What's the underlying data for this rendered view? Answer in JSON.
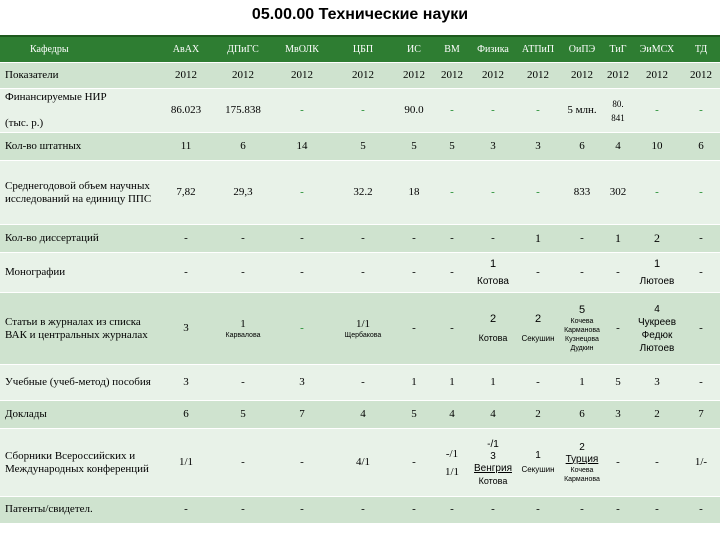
{
  "title": "05.00.00 Технические науки",
  "columns": [
    "АвАХ",
    "ДПиГС",
    "МвОЛК",
    "ЦБП",
    "ИС",
    "ВМ",
    "Физика",
    "АТПиП",
    "ОиПЭ",
    "ТиГ",
    "ЭиМСХ",
    "ТД"
  ],
  "header_label": "Кафедры",
  "rows": {
    "year": {
      "label": "Показатели",
      "values": [
        "2012",
        "2012",
        "2012",
        "2012",
        "2012",
        "2012",
        "2012",
        "2012",
        "2012",
        "2012",
        "2012",
        "2012"
      ]
    },
    "nir": {
      "label_line1": "Финансируемые НИР",
      "label_line2": "(тыс. р.)",
      "values": [
        "86.023",
        "175.838",
        "-",
        "-",
        "90.0",
        "-",
        "-",
        "-",
        "5 млн.",
        "80.",
        "-",
        "-"
      ],
      "tig_part2": "841"
    },
    "staff": {
      "label": "Кол-во штатных",
      "values": [
        "11",
        "6",
        "14",
        "5",
        "5",
        "5",
        "3",
        "3",
        "6",
        "4",
        "10",
        "6"
      ]
    },
    "avg": {
      "label": "Среднегодовой объем научных исследований на единицу ППС",
      "values": [
        "7,82",
        "29,3",
        "-",
        "32.2",
        "18",
        "-",
        "-",
        "-",
        "833",
        "302",
        "-",
        "-"
      ]
    },
    "diss": {
      "label": "Кол-во диссертаций",
      "values": [
        "-",
        "-",
        "-",
        "-",
        "-",
        "-",
        "-",
        "1",
        "-",
        "1",
        "2",
        "-"
      ]
    },
    "mono": {
      "label": "Монографии",
      "values": [
        "-",
        "-",
        "-",
        "-",
        "-",
        "-",
        "1",
        "-",
        "-",
        "-",
        "1",
        "-"
      ],
      "fizika_name": "Котова",
      "eimsh_name": "Лютоев"
    },
    "articles": {
      "label": "Статьи в журналах из списка ВАК и центральных журналах",
      "values": [
        "3",
        "1",
        "-",
        "1/1",
        "-",
        "-",
        "2",
        "2",
        "5",
        "-",
        "4",
        "-"
      ],
      "dpigs_name": "Карвалова",
      "cbp_name": "Щербакова",
      "fizika_name": "Котова",
      "atpip_name": "Секушин",
      "oipe_names": [
        "Кочева",
        "Карманова",
        "Кузнецова",
        "Дудкин"
      ],
      "eimsh_names": [
        "Чукреев",
        "Федюк",
        "Лютоев"
      ]
    },
    "textbooks": {
      "label": "Учебные (учеб-метод) пособия",
      "values": [
        "3",
        "-",
        "3",
        "-",
        "1",
        "1",
        "1",
        "-",
        "1",
        "5",
        "3",
        "-"
      ]
    },
    "reports": {
      "label": "Доклады",
      "values": [
        "6",
        "5",
        "7",
        "4",
        "5",
        "4",
        "4",
        "2",
        "6",
        "3",
        "2",
        "7"
      ]
    },
    "collections": {
      "label": "Сборники Всероссийских и Международных конференций",
      "values": [
        "1/1",
        "-",
        "-",
        "4/1",
        "-",
        "-/1",
        "-/1",
        "1",
        "2",
        "-",
        "-",
        "1/-"
      ],
      "vm_second": "1/1",
      "fizika_second": "3",
      "fizika_place": "Венгрия",
      "fizika_name": "Котова",
      "atpip_name": "Секушин",
      "oipe_place": "Турция",
      "oipe_names": [
        "Кочева",
        "Карманова"
      ]
    },
    "patents": {
      "label": "Патенты/свидетел.",
      "values": [
        "-",
        "-",
        "-",
        "-",
        "-",
        "-",
        "-",
        "-",
        "-",
        "-",
        "-",
        "-"
      ]
    }
  }
}
